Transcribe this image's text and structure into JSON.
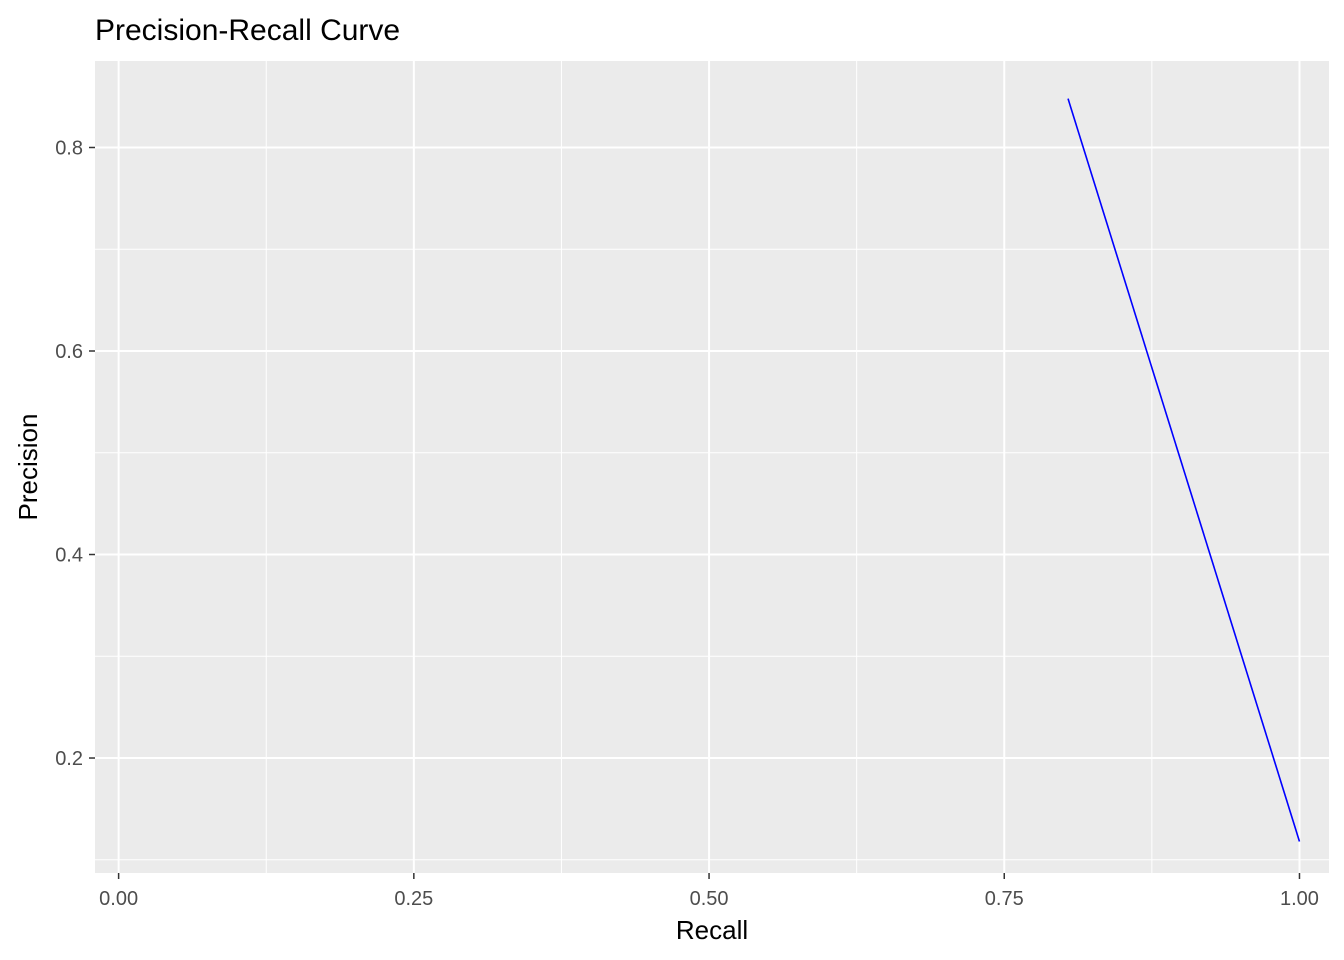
{
  "chart_data": {
    "type": "line",
    "title": "Precision-Recall Curve",
    "subtitle": "",
    "xlabel": "Recall",
    "ylabel": "Precision",
    "xlim": [
      -0.02,
      1.025
    ],
    "ylim": [
      0.087,
      0.885
    ],
    "x_ticks": [
      0.0,
      0.25,
      0.5,
      0.75,
      1.0
    ],
    "x_tick_labels": [
      "0.00",
      "0.25",
      "0.50",
      "0.75",
      "1.00"
    ],
    "y_ticks": [
      0.2,
      0.4,
      0.6,
      0.8
    ],
    "y_tick_labels": [
      "0.2",
      "0.4",
      "0.6",
      "0.8"
    ],
    "x_minor_ticks": [
      0.125,
      0.375,
      0.625,
      0.875
    ],
    "y_minor_ticks": [
      0.1,
      0.3,
      0.5,
      0.7
    ],
    "grid": true,
    "legend": "none",
    "series": [
      {
        "color": "#0000ff",
        "x": [
          0.804,
          1.0
        ],
        "y": [
          0.848,
          0.118
        ]
      }
    ],
    "colors": {
      "panel_background": "#ebebeb",
      "grid": "#ffffff",
      "tick_text": "#4d4d4d",
      "tick_mark": "#333333"
    }
  }
}
